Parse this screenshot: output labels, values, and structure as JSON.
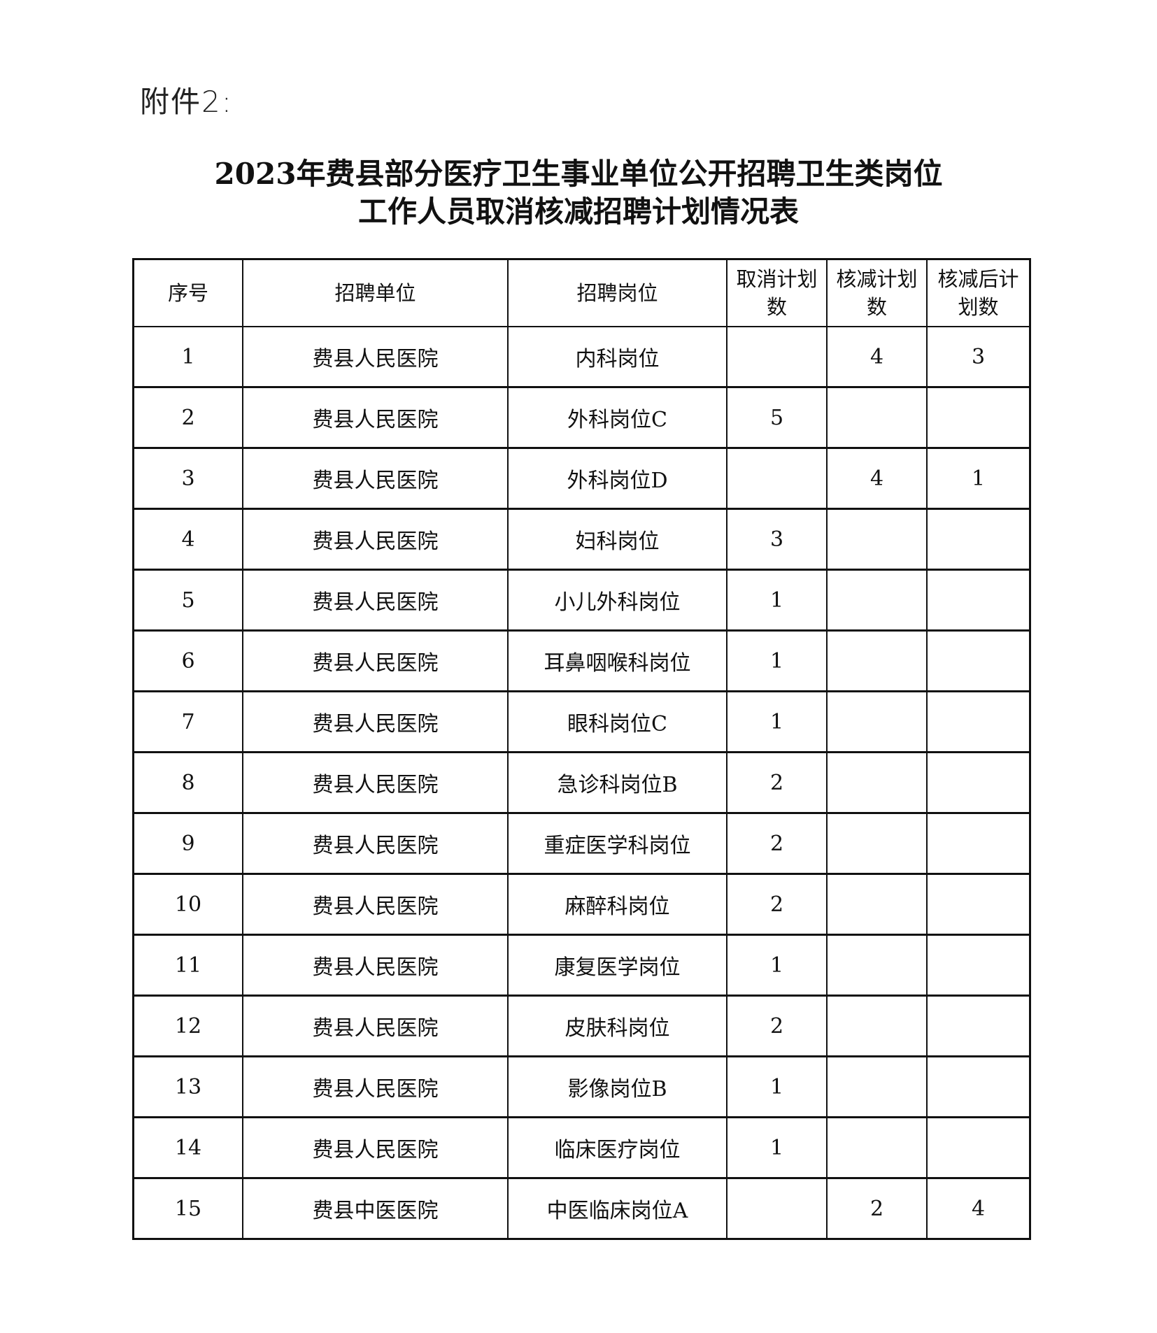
{
  "attachment_label": "附件2:",
  "title_line1": "2023年费县部分医疗卫生事业单位公开招聘卫生类岗位",
  "title_line2": "工作人员取消核减招聘计划情况表",
  "table": {
    "headers": [
      "序号",
      "招聘单位",
      "招聘岗位",
      "取消计划数",
      "核减计划数",
      "核减后计划数"
    ],
    "rows": [
      [
        "1",
        "费县人民医院",
        "内科岗位",
        "",
        "4",
        "3"
      ],
      [
        "2",
        "费县人民医院",
        "外科岗位C",
        "5",
        "",
        ""
      ],
      [
        "3",
        "费县人民医院",
        "外科岗位D",
        "",
        "4",
        "1"
      ],
      [
        "4",
        "费县人民医院",
        "妇科岗位",
        "3",
        "",
        ""
      ],
      [
        "5",
        "费县人民医院",
        "小儿外科岗位",
        "1",
        "",
        ""
      ],
      [
        "6",
        "费县人民医院",
        "耳鼻咽喉科岗位",
        "1",
        "",
        ""
      ],
      [
        "7",
        "费县人民医院",
        "眼科岗位C",
        "1",
        "",
        ""
      ],
      [
        "8",
        "费县人民医院",
        "急诊科岗位B",
        "2",
        "",
        ""
      ],
      [
        "9",
        "费县人民医院",
        "重症医学科岗位",
        "2",
        "",
        ""
      ],
      [
        "10",
        "费县人民医院",
        "麻醉科岗位",
        "2",
        "",
        ""
      ],
      [
        "11",
        "费县人民医院",
        "康复医学岗位",
        "1",
        "",
        ""
      ],
      [
        "12",
        "费县人民医院",
        "皮肤科岗位",
        "2",
        "",
        ""
      ],
      [
        "13",
        "费县人民医院",
        "影像岗位B",
        "1",
        "",
        ""
      ],
      [
        "14",
        "费县人民医院",
        "临床医疗岗位",
        "1",
        "",
        ""
      ],
      [
        "15",
        "费县中医医院",
        "中医临床岗位A",
        "",
        "2",
        "4"
      ]
    ]
  }
}
